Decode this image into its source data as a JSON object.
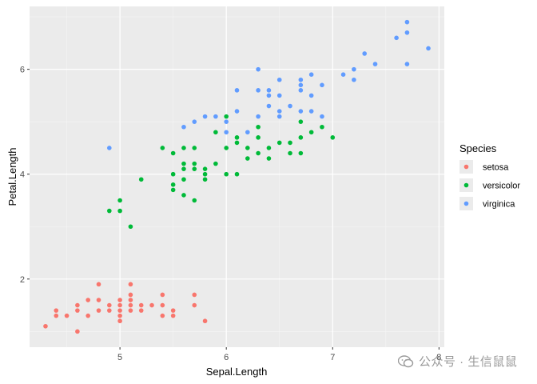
{
  "chart_data": {
    "type": "scatter",
    "title": "",
    "xlabel": "Sepal.Length",
    "ylabel": "Petal.Length",
    "xlim": [
      4.15,
      8.05
    ],
    "ylim": [
      0.7,
      7.2
    ],
    "xticks": [
      5,
      6,
      7,
      8
    ],
    "yticks": [
      2,
      4,
      6
    ],
    "xtick_labels": [
      "5",
      "6",
      "7",
      "8"
    ],
    "ytick_labels": [
      "2",
      "4",
      "6"
    ],
    "grid": true,
    "legend": {
      "title": "Species",
      "position": "right"
    },
    "series": [
      {
        "name": "setosa",
        "color": "#F8766D",
        "points": [
          [
            4.3,
            1.1
          ],
          [
            4.4,
            1.3
          ],
          [
            4.4,
            1.4
          ],
          [
            4.5,
            1.3
          ],
          [
            4.6,
            1.4
          ],
          [
            4.6,
            1.5
          ],
          [
            4.6,
            1.0
          ],
          [
            4.7,
            1.3
          ],
          [
            4.7,
            1.6
          ],
          [
            4.8,
            1.4
          ],
          [
            4.8,
            1.6
          ],
          [
            4.8,
            1.9
          ],
          [
            4.9,
            1.4
          ],
          [
            4.9,
            1.5
          ],
          [
            5.0,
            1.2
          ],
          [
            5.0,
            1.3
          ],
          [
            5.0,
            1.4
          ],
          [
            5.0,
            1.5
          ],
          [
            5.0,
            1.6
          ],
          [
            5.1,
            1.4
          ],
          [
            5.1,
            1.5
          ],
          [
            5.1,
            1.6
          ],
          [
            5.1,
            1.7
          ],
          [
            5.1,
            1.9
          ],
          [
            5.2,
            1.4
          ],
          [
            5.2,
            1.5
          ],
          [
            5.3,
            1.5
          ],
          [
            5.4,
            1.3
          ],
          [
            5.4,
            1.5
          ],
          [
            5.4,
            1.7
          ],
          [
            5.5,
            1.3
          ],
          [
            5.5,
            1.4
          ],
          [
            5.7,
            1.5
          ],
          [
            5.7,
            1.7
          ],
          [
            5.8,
            1.2
          ]
        ]
      },
      {
        "name": "versicolor",
        "color": "#00BA38",
        "points": [
          [
            4.9,
            3.3
          ],
          [
            5.0,
            3.3
          ],
          [
            5.0,
            3.5
          ],
          [
            5.1,
            3.0
          ],
          [
            5.2,
            3.9
          ],
          [
            5.4,
            4.5
          ],
          [
            5.5,
            3.7
          ],
          [
            5.5,
            3.8
          ],
          [
            5.5,
            4.0
          ],
          [
            5.5,
            4.4
          ],
          [
            5.6,
            3.6
          ],
          [
            5.6,
            3.9
          ],
          [
            5.6,
            4.1
          ],
          [
            5.6,
            4.2
          ],
          [
            5.6,
            4.5
          ],
          [
            5.7,
            3.5
          ],
          [
            5.7,
            4.1
          ],
          [
            5.7,
            4.2
          ],
          [
            5.7,
            4.5
          ],
          [
            5.8,
            3.9
          ],
          [
            5.8,
            4.0
          ],
          [
            5.8,
            4.1
          ],
          [
            5.9,
            4.2
          ],
          [
            5.9,
            4.8
          ],
          [
            6.0,
            4.0
          ],
          [
            6.0,
            4.5
          ],
          [
            6.0,
            5.1
          ],
          [
            6.1,
            4.0
          ],
          [
            6.1,
            4.6
          ],
          [
            6.1,
            4.7
          ],
          [
            6.2,
            4.3
          ],
          [
            6.2,
            4.5
          ],
          [
            6.3,
            4.4
          ],
          [
            6.3,
            4.7
          ],
          [
            6.3,
            4.9
          ],
          [
            6.4,
            4.3
          ],
          [
            6.4,
            4.5
          ],
          [
            6.5,
            4.6
          ],
          [
            6.6,
            4.4
          ],
          [
            6.6,
            4.6
          ],
          [
            6.7,
            4.4
          ],
          [
            6.7,
            4.7
          ],
          [
            6.7,
            5.0
          ],
          [
            6.8,
            4.8
          ],
          [
            6.9,
            4.9
          ],
          [
            7.0,
            4.7
          ]
        ]
      },
      {
        "name": "virginica",
        "color": "#619CFF",
        "points": [
          [
            4.9,
            4.5
          ],
          [
            5.6,
            4.9
          ],
          [
            5.7,
            5.0
          ],
          [
            5.8,
            5.1
          ],
          [
            5.9,
            5.1
          ],
          [
            6.0,
            4.8
          ],
          [
            6.0,
            5.0
          ],
          [
            6.1,
            5.6
          ],
          [
            6.2,
            4.8
          ],
          [
            6.3,
            5.1
          ],
          [
            6.3,
            5.6
          ],
          [
            6.3,
            6.0
          ],
          [
            6.4,
            5.3
          ],
          [
            6.4,
            5.5
          ],
          [
            6.4,
            5.6
          ],
          [
            6.5,
            5.1
          ],
          [
            6.5,
            5.5
          ],
          [
            6.5,
            5.8
          ],
          [
            6.7,
            5.2
          ],
          [
            6.7,
            5.6
          ],
          [
            6.7,
            5.7
          ],
          [
            6.7,
            5.8
          ],
          [
            6.8,
            5.5
          ],
          [
            6.8,
            5.9
          ],
          [
            6.9,
            5.1
          ],
          [
            6.9,
            5.7
          ],
          [
            7.1,
            5.9
          ],
          [
            7.2,
            5.8
          ],
          [
            7.2,
            6.0
          ],
          [
            7.3,
            6.3
          ],
          [
            7.4,
            6.1
          ],
          [
            7.6,
            6.6
          ],
          [
            7.7,
            6.1
          ],
          [
            7.7,
            6.7
          ],
          [
            7.7,
            6.9
          ],
          [
            7.9,
            6.4
          ],
          [
            6.1,
            5.2
          ],
          [
            6.5,
            5.2
          ],
          [
            6.6,
            5.3
          ],
          [
            6.8,
            5.2
          ]
        ]
      }
    ]
  },
  "watermark": {
    "text": "公众号 · 生信鼠鼠"
  }
}
